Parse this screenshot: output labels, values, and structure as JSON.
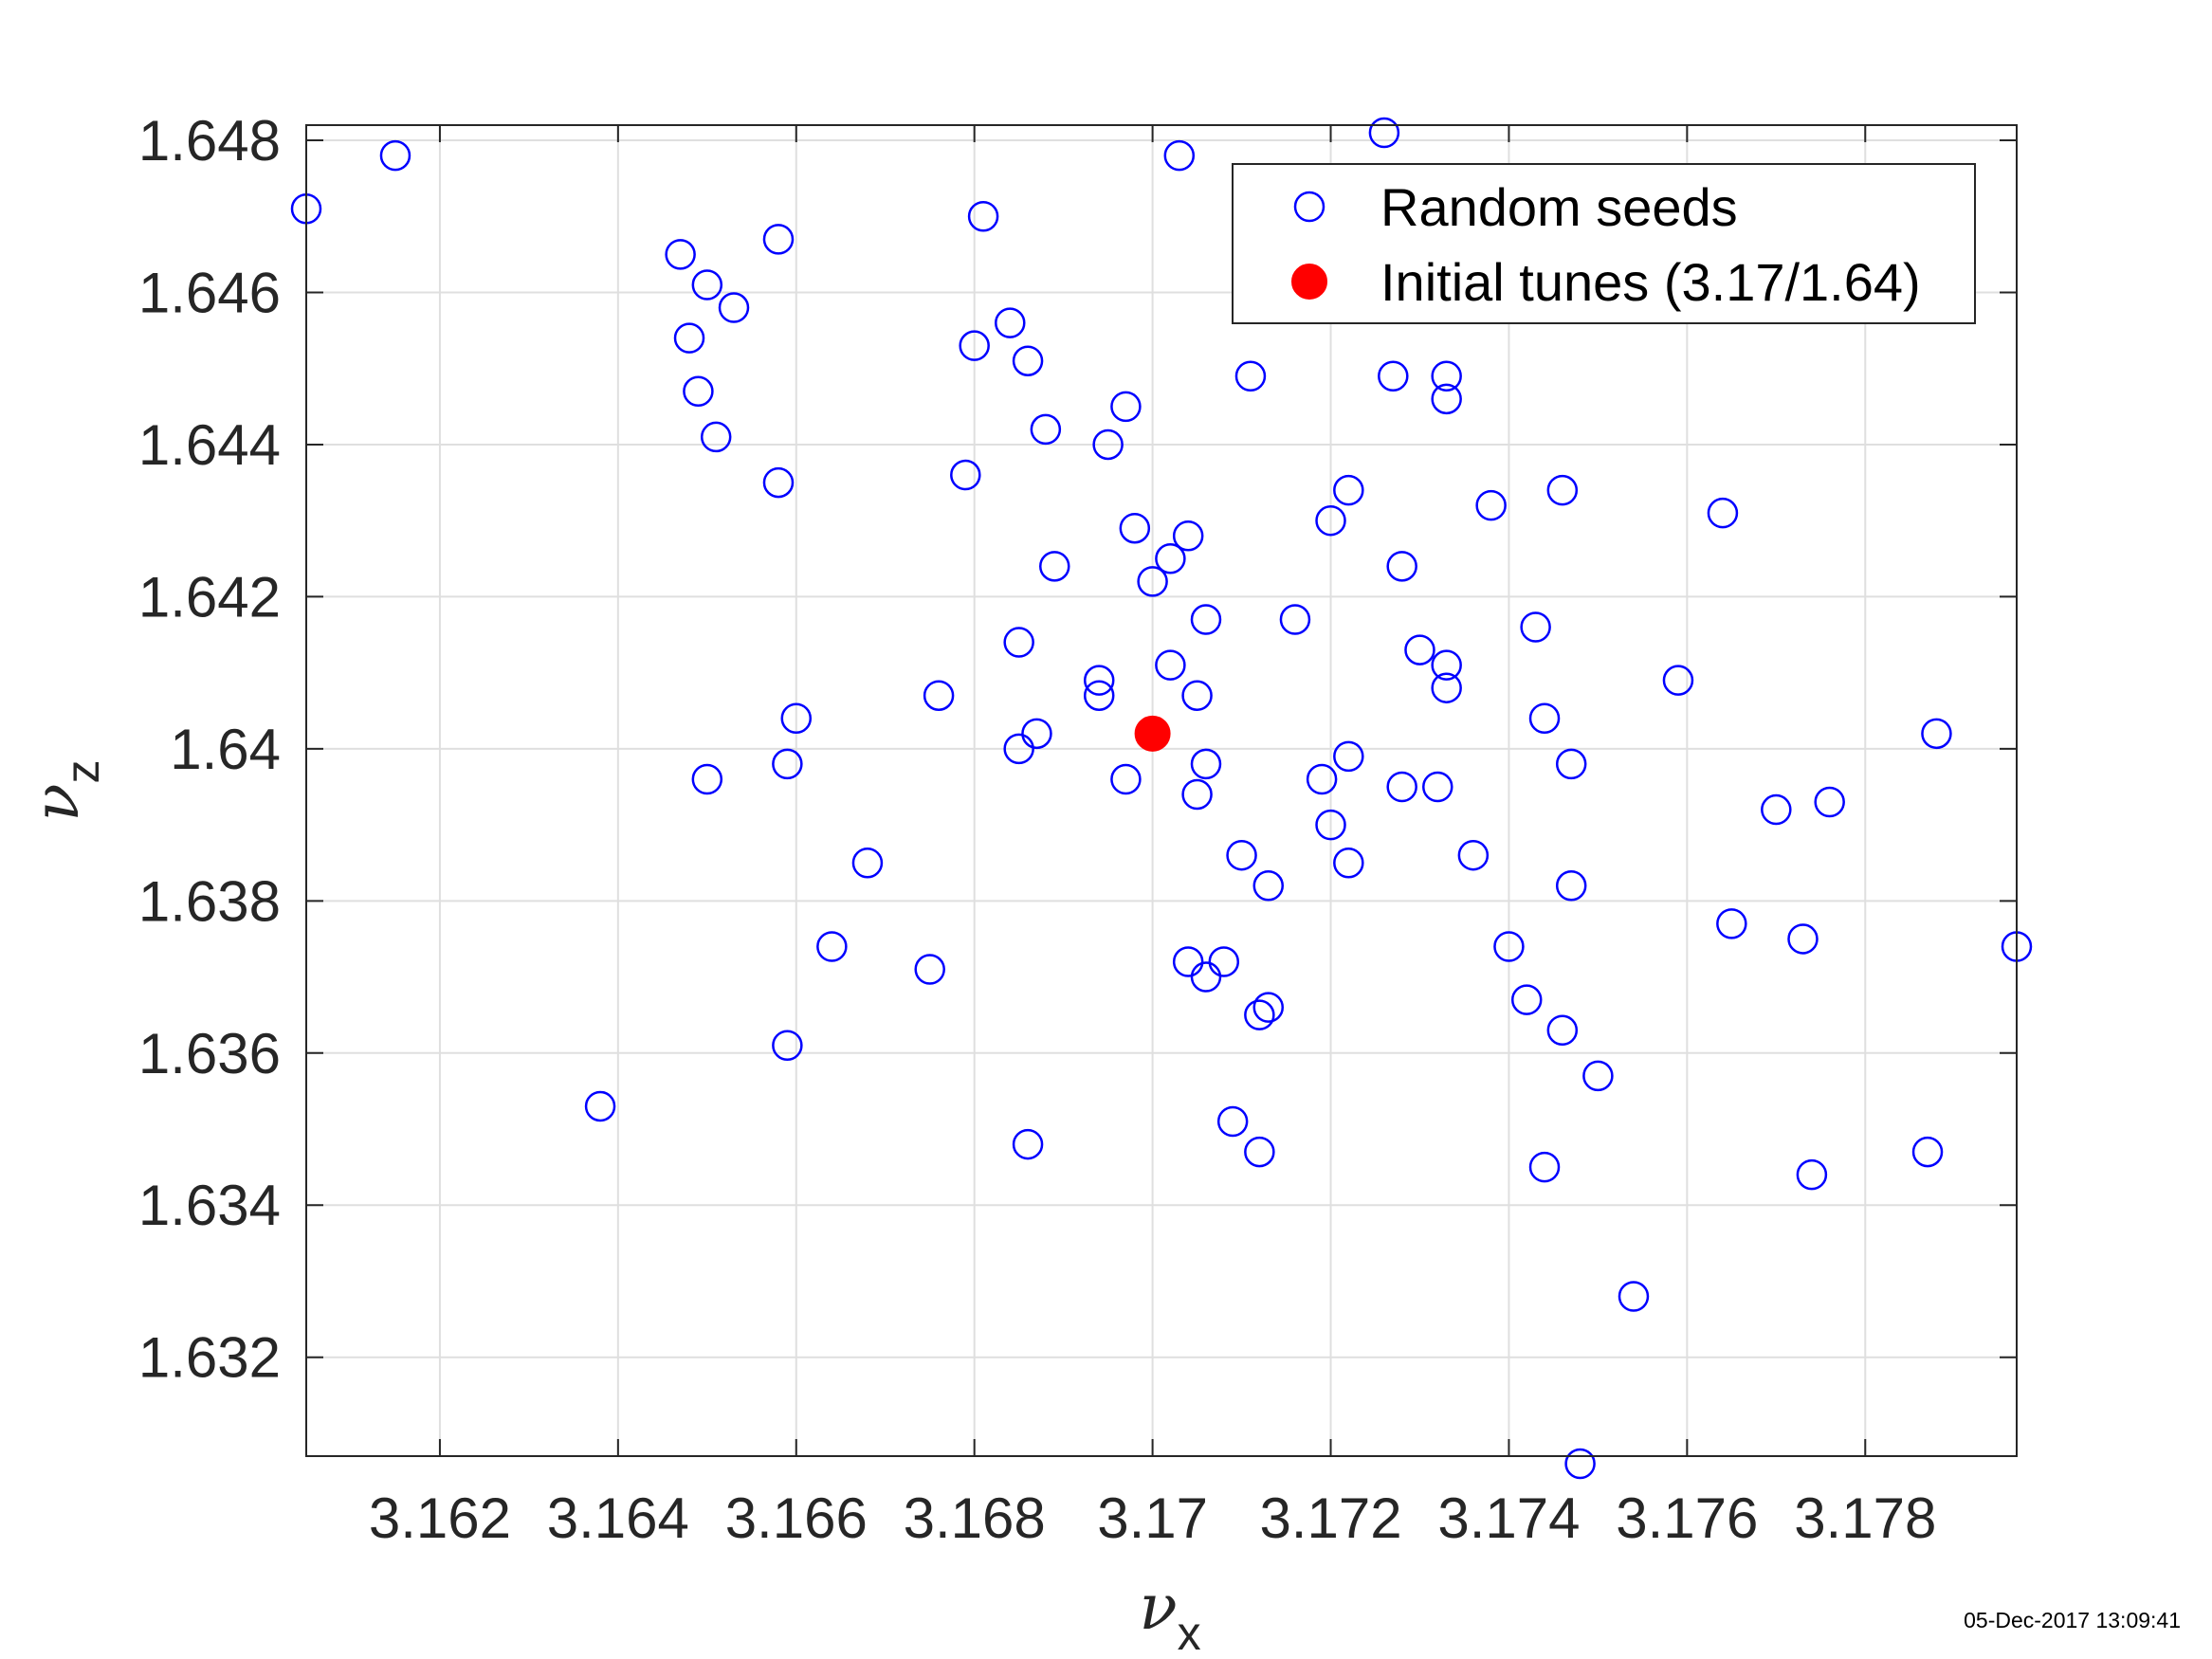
{
  "chart_data": {
    "type": "scatter",
    "xlabel": "ν",
    "xlabel_sub": "x",
    "ylabel": "ν",
    "ylabel_sub": "z",
    "xlim": [
      3.1605,
      3.1797
    ],
    "ylim": [
      1.6307,
      1.6482
    ],
    "x_ticks": [
      3.162,
      3.164,
      3.166,
      3.168,
      3.17,
      3.172,
      3.174,
      3.176,
      3.178
    ],
    "x_tick_labels": [
      "3.162",
      "3.164",
      "3.166",
      "3.168",
      "3.17",
      "3.172",
      "3.174",
      "3.176",
      "3.178"
    ],
    "y_ticks": [
      1.632,
      1.634,
      1.636,
      1.638,
      1.64,
      1.642,
      1.644,
      1.646,
      1.648
    ],
    "y_tick_labels": [
      "1.632",
      "1.634",
      "1.636",
      "1.638",
      "1.64",
      "1.642",
      "1.644",
      "1.646",
      "1.648"
    ],
    "grid": true,
    "legend_position": "top-right",
    "series": [
      {
        "name": "Random seeds",
        "marker": "open-circle",
        "color": "#0000ff",
        "points": [
          [
            3.1605,
            1.6471
          ],
          [
            3.1615,
            1.6478
          ],
          [
            3.1638,
            1.6353
          ],
          [
            3.1647,
            1.6465
          ],
          [
            3.1648,
            1.6454
          ],
          [
            3.1649,
            1.6447
          ],
          [
            3.165,
            1.6461
          ],
          [
            3.165,
            1.6396
          ],
          [
            3.1651,
            1.6441
          ],
          [
            3.1653,
            1.6458
          ],
          [
            3.1658,
            1.6467
          ],
          [
            3.1658,
            1.6435
          ],
          [
            3.1659,
            1.6398
          ],
          [
            3.1659,
            1.6361
          ],
          [
            3.166,
            1.6404
          ],
          [
            3.1664,
            1.6374
          ],
          [
            3.1668,
            1.6385
          ],
          [
            3.1675,
            1.6371
          ],
          [
            3.1676,
            1.6407
          ],
          [
            3.1679,
            1.6436
          ],
          [
            3.168,
            1.6453
          ],
          [
            3.1681,
            1.647
          ],
          [
            3.1684,
            1.6456
          ],
          [
            3.1685,
            1.6414
          ],
          [
            3.1685,
            1.64
          ],
          [
            3.1686,
            1.6451
          ],
          [
            3.1686,
            1.6348
          ],
          [
            3.1687,
            1.6402
          ],
          [
            3.1688,
            1.6442
          ],
          [
            3.1689,
            1.6424
          ],
          [
            3.1694,
            1.6409
          ],
          [
            3.1694,
            1.6407
          ],
          [
            3.1695,
            1.644
          ],
          [
            3.1697,
            1.6445
          ],
          [
            3.1697,
            1.6396
          ],
          [
            3.1698,
            1.6429
          ],
          [
            3.17,
            1.6422
          ],
          [
            3.1702,
            1.6411
          ],
          [
            3.1702,
            1.6425
          ],
          [
            3.1703,
            1.6478
          ],
          [
            3.1704,
            1.6428
          ],
          [
            3.1704,
            1.6372
          ],
          [
            3.1705,
            1.6394
          ],
          [
            3.1705,
            1.6407
          ],
          [
            3.1706,
            1.6417
          ],
          [
            3.1706,
            1.6398
          ],
          [
            3.1706,
            1.637
          ],
          [
            3.1708,
            1.6372
          ],
          [
            3.1709,
            1.6351
          ],
          [
            3.171,
            1.6386
          ],
          [
            3.1711,
            1.6449
          ],
          [
            3.1712,
            1.6365
          ],
          [
            3.1712,
            1.6347
          ],
          [
            3.1713,
            1.6382
          ],
          [
            3.1713,
            1.6366
          ],
          [
            3.1716,
            1.6417
          ],
          [
            3.1719,
            1.6396
          ],
          [
            3.172,
            1.643
          ],
          [
            3.172,
            1.639
          ],
          [
            3.1722,
            1.6399
          ],
          [
            3.1722,
            1.6385
          ],
          [
            3.1722,
            1.6434
          ],
          [
            3.1726,
            1.6481
          ],
          [
            3.1727,
            1.6449
          ],
          [
            3.1728,
            1.6395
          ],
          [
            3.1728,
            1.6424
          ],
          [
            3.173,
            1.6413
          ],
          [
            3.1732,
            1.6395
          ],
          [
            3.1733,
            1.6411
          ],
          [
            3.1733,
            1.6408
          ],
          [
            3.1733,
            1.6449
          ],
          [
            3.1733,
            1.6446
          ],
          [
            3.1736,
            1.6386
          ],
          [
            3.1738,
            1.6432
          ],
          [
            3.174,
            1.6374
          ],
          [
            3.1742,
            1.6367
          ],
          [
            3.1743,
            1.6416
          ],
          [
            3.1744,
            1.6404
          ],
          [
            3.1744,
            1.6345
          ],
          [
            3.1746,
            1.6434
          ],
          [
            3.1746,
            1.6363
          ],
          [
            3.1747,
            1.6398
          ],
          [
            3.1747,
            1.6382
          ],
          [
            3.1748,
            1.6306
          ],
          [
            3.175,
            1.6357
          ],
          [
            3.1754,
            1.6328
          ],
          [
            3.1759,
            1.6409
          ],
          [
            3.1764,
            1.6431
          ],
          [
            3.1765,
            1.6377
          ],
          [
            3.177,
            1.6392
          ],
          [
            3.1773,
            1.6375
          ],
          [
            3.1774,
            1.6344
          ],
          [
            3.1776,
            1.6393
          ],
          [
            3.1787,
            1.6347
          ],
          [
            3.1788,
            1.6402
          ],
          [
            3.1797,
            1.6374
          ]
        ]
      },
      {
        "name": "Initial tunes (3.17/1.64)",
        "marker": "filled-circle",
        "color": "#ff0000",
        "points": [
          [
            3.17,
            1.6402
          ]
        ]
      }
    ]
  },
  "footer": {
    "timestamp": "05-Dec-2017 13:09:41"
  }
}
